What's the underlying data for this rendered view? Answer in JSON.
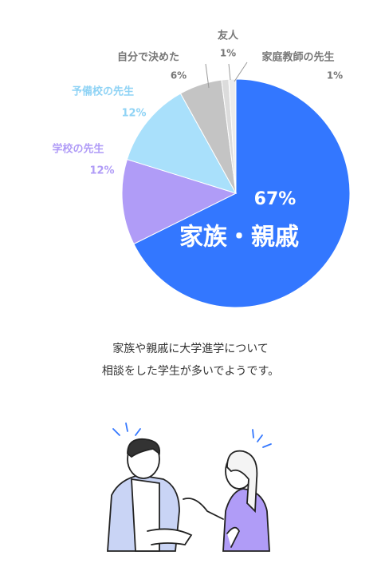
{
  "chart_data": {
    "type": "pie",
    "categories": [
      "家族・親戚",
      "学校の先生",
      "予備校の先生",
      "自分で決めた",
      "友人",
      "家庭教師の先生"
    ],
    "values": [
      67,
      12,
      12,
      6,
      1,
      1
    ],
    "value_labels": [
      "67%",
      "12%",
      "12%",
      "6%",
      "1%",
      "1%"
    ],
    "colors": [
      "#3377ff",
      "#b09cf7",
      "#a9e0fb",
      "#c4c4c4",
      "#dcdcdc",
      "#ececec"
    ]
  },
  "caption": [
    "家族や親戚に大学進学について",
    "相談をした学生が多いでようです。"
  ]
}
